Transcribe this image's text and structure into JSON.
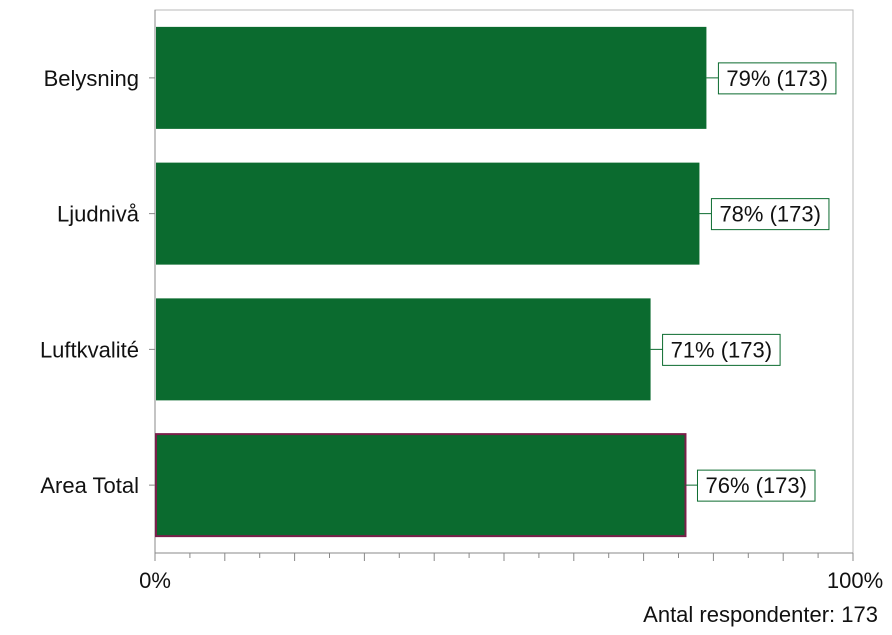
{
  "chart_data": {
    "type": "bar",
    "orientation": "horizontal",
    "categories": [
      "Belysning",
      "Ljudnivå",
      "Luftkvalité",
      "Area Total"
    ],
    "values": [
      79,
      78,
      71,
      76
    ],
    "data_labels": [
      "79% (173)",
      "78% (173)",
      "71% (173)",
      "76% (173)"
    ],
    "x_tick_labels": [
      "0%",
      "100%"
    ],
    "xlim": [
      0,
      100
    ],
    "grid": false,
    "legend": "none",
    "colors": {
      "bar": "#0b6b2f",
      "highlight_outline": "#7a1f4a",
      "label_box_border": "#0b6b2f",
      "plot_border": "#b8b8b8"
    },
    "highlight_category": "Area Total"
  },
  "footer": {
    "respondents_text": "Antal respondenter: 173"
  }
}
